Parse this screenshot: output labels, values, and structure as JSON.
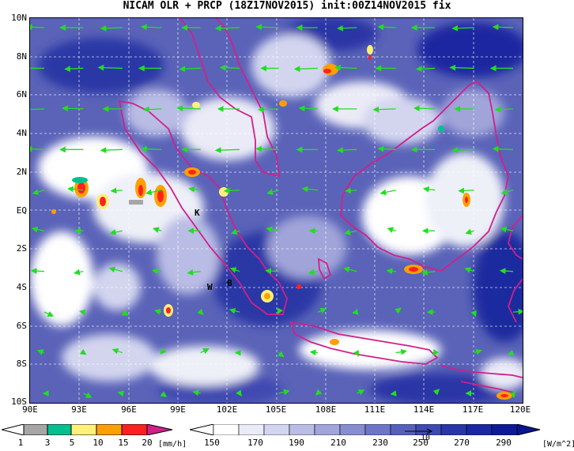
{
  "title": "NICAM OLR + PRCP (18Z17NOV2015) init:00Z14NOV2015 fix",
  "map": {
    "lat_labels": [
      "10N",
      "8N",
      "6N",
      "4N",
      "2N",
      "EQ",
      "2S",
      "4S",
      "6S",
      "8S",
      "10S"
    ],
    "lon_labels": [
      "90E",
      "93E",
      "96E",
      "99E",
      "102E",
      "105E",
      "108E",
      "111E",
      "114E",
      "117E",
      "120E"
    ],
    "lat_range": [
      -10,
      10
    ],
    "lon_range": [
      90,
      120
    ],
    "place_labels": [
      {
        "text": "K",
        "lon": 100.1,
        "lat": -0.2
      },
      {
        "text": "W",
        "lon": 101.9,
        "lat": -4.1
      },
      {
        "text": "B",
        "lon": 102.7,
        "lat": -3.9
      }
    ],
    "colors": {
      "wind_vectors": "#22dd22",
      "coastline": "#d0208a",
      "grid": "#ffffff"
    }
  },
  "precip_colorbar": {
    "ticks": [
      "1",
      "3",
      "5",
      "10",
      "15",
      "20"
    ],
    "unit": "[mm/h]",
    "colors": [
      "#a6a6a6",
      "#00c090",
      "#fff07a",
      "#ffa000",
      "#ff2020",
      "#d0208a"
    ]
  },
  "olr_colorbar": {
    "ticks": [
      "150",
      "170",
      "190",
      "210",
      "230",
      "250",
      "270",
      "290"
    ],
    "unit": "[W/m^2]",
    "vector_reference_label": "10",
    "colors": [
      "#ffffff",
      "#ebebf7",
      "#d3d5ef",
      "#b9bce4",
      "#a0a4d9",
      "#878dcf",
      "#6e76c5",
      "#5660bb",
      "#3f4ab1",
      "#2936a6",
      "#1a27a0",
      "#0f1b96"
    ]
  }
}
